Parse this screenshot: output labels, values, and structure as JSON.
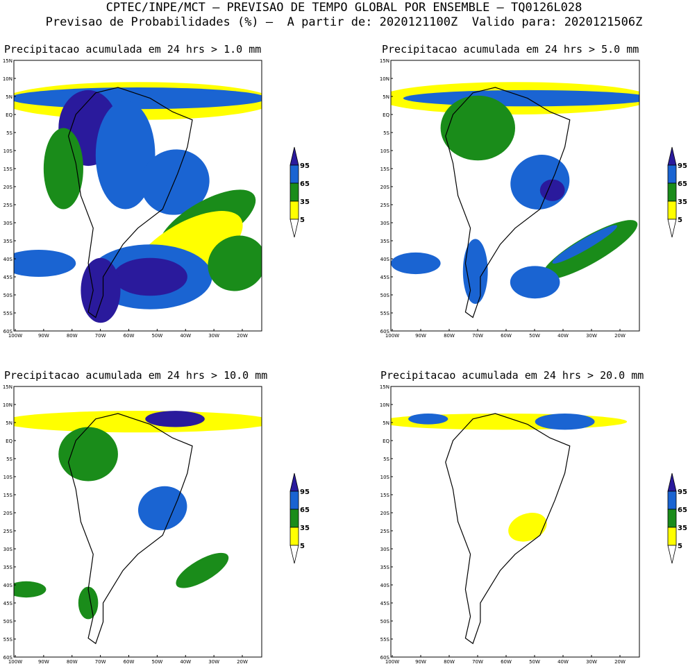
{
  "header": {
    "line1": "CPTEC/INPE/MCT — PREVISAO DE TEMPO GLOBAL POR ENSEMBLE — TQ0126L028",
    "line2": "Previsao de Probabilidades (%) —  A partir de: 2020121100Z  Valido para: 2020121506Z"
  },
  "lat_ticks": [
    "15N",
    "10N",
    "5N",
    "EQ",
    "5S",
    "10S",
    "15S",
    "20S",
    "25S",
    "30S",
    "35S",
    "40S",
    "45S",
    "50S",
    "55S",
    "60S"
  ],
  "lon_ticks": [
    "100W",
    "90W",
    "80W",
    "70W",
    "60W",
    "50W",
    "40W",
    "30W",
    "20W"
  ],
  "legend": {
    "levels": [
      "95",
      "65",
      "35",
      "5"
    ]
  },
  "colors": {
    "low": "#ffff00",
    "mid": "#1a8c1a",
    "high": "#1a64d2",
    "top": "#2a1a9c",
    "land": "#ffffff",
    "border": "#000000"
  },
  "panels": [
    {
      "title": "Precipitacao acumulada em 24 hrs > 1.0 mm"
    },
    {
      "title": "Precipitacao acumulada em 24 hrs > 5.0 mm"
    },
    {
      "title": "Precipitacao acumulada em 24 hrs > 10.0 mm"
    },
    {
      "title": "Precipitacao acumulada em 24 hrs > 20.0 mm"
    }
  ]
}
